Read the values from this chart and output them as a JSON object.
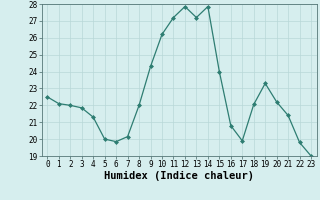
{
  "xlabel": "Humidex (Indice chaleur)",
  "x": [
    0,
    1,
    2,
    3,
    4,
    5,
    6,
    7,
    8,
    9,
    10,
    11,
    12,
    13,
    14,
    15,
    16,
    17,
    18,
    19,
    20,
    21,
    22,
    23
  ],
  "y": [
    22.5,
    22.1,
    22.0,
    21.85,
    21.3,
    20.0,
    19.85,
    20.15,
    22.0,
    24.3,
    26.2,
    27.2,
    27.85,
    27.2,
    27.85,
    24.0,
    20.8,
    19.9,
    22.05,
    23.3,
    22.2,
    21.4,
    19.8,
    19.0
  ],
  "line_color": "#2e7d72",
  "marker": "D",
  "marker_size": 2.0,
  "background_color": "#d6eeee",
  "grid_color": "#b8d8d8",
  "ylim": [
    19,
    28
  ],
  "yticks": [
    19,
    20,
    21,
    22,
    23,
    24,
    25,
    26,
    27,
    28
  ],
  "xticks": [
    0,
    1,
    2,
    3,
    4,
    5,
    6,
    7,
    8,
    9,
    10,
    11,
    12,
    13,
    14,
    15,
    16,
    17,
    18,
    19,
    20,
    21,
    22,
    23
  ],
  "tick_fontsize": 5.5,
  "xlabel_fontsize": 7.5,
  "xlabel_fontweight": "bold"
}
